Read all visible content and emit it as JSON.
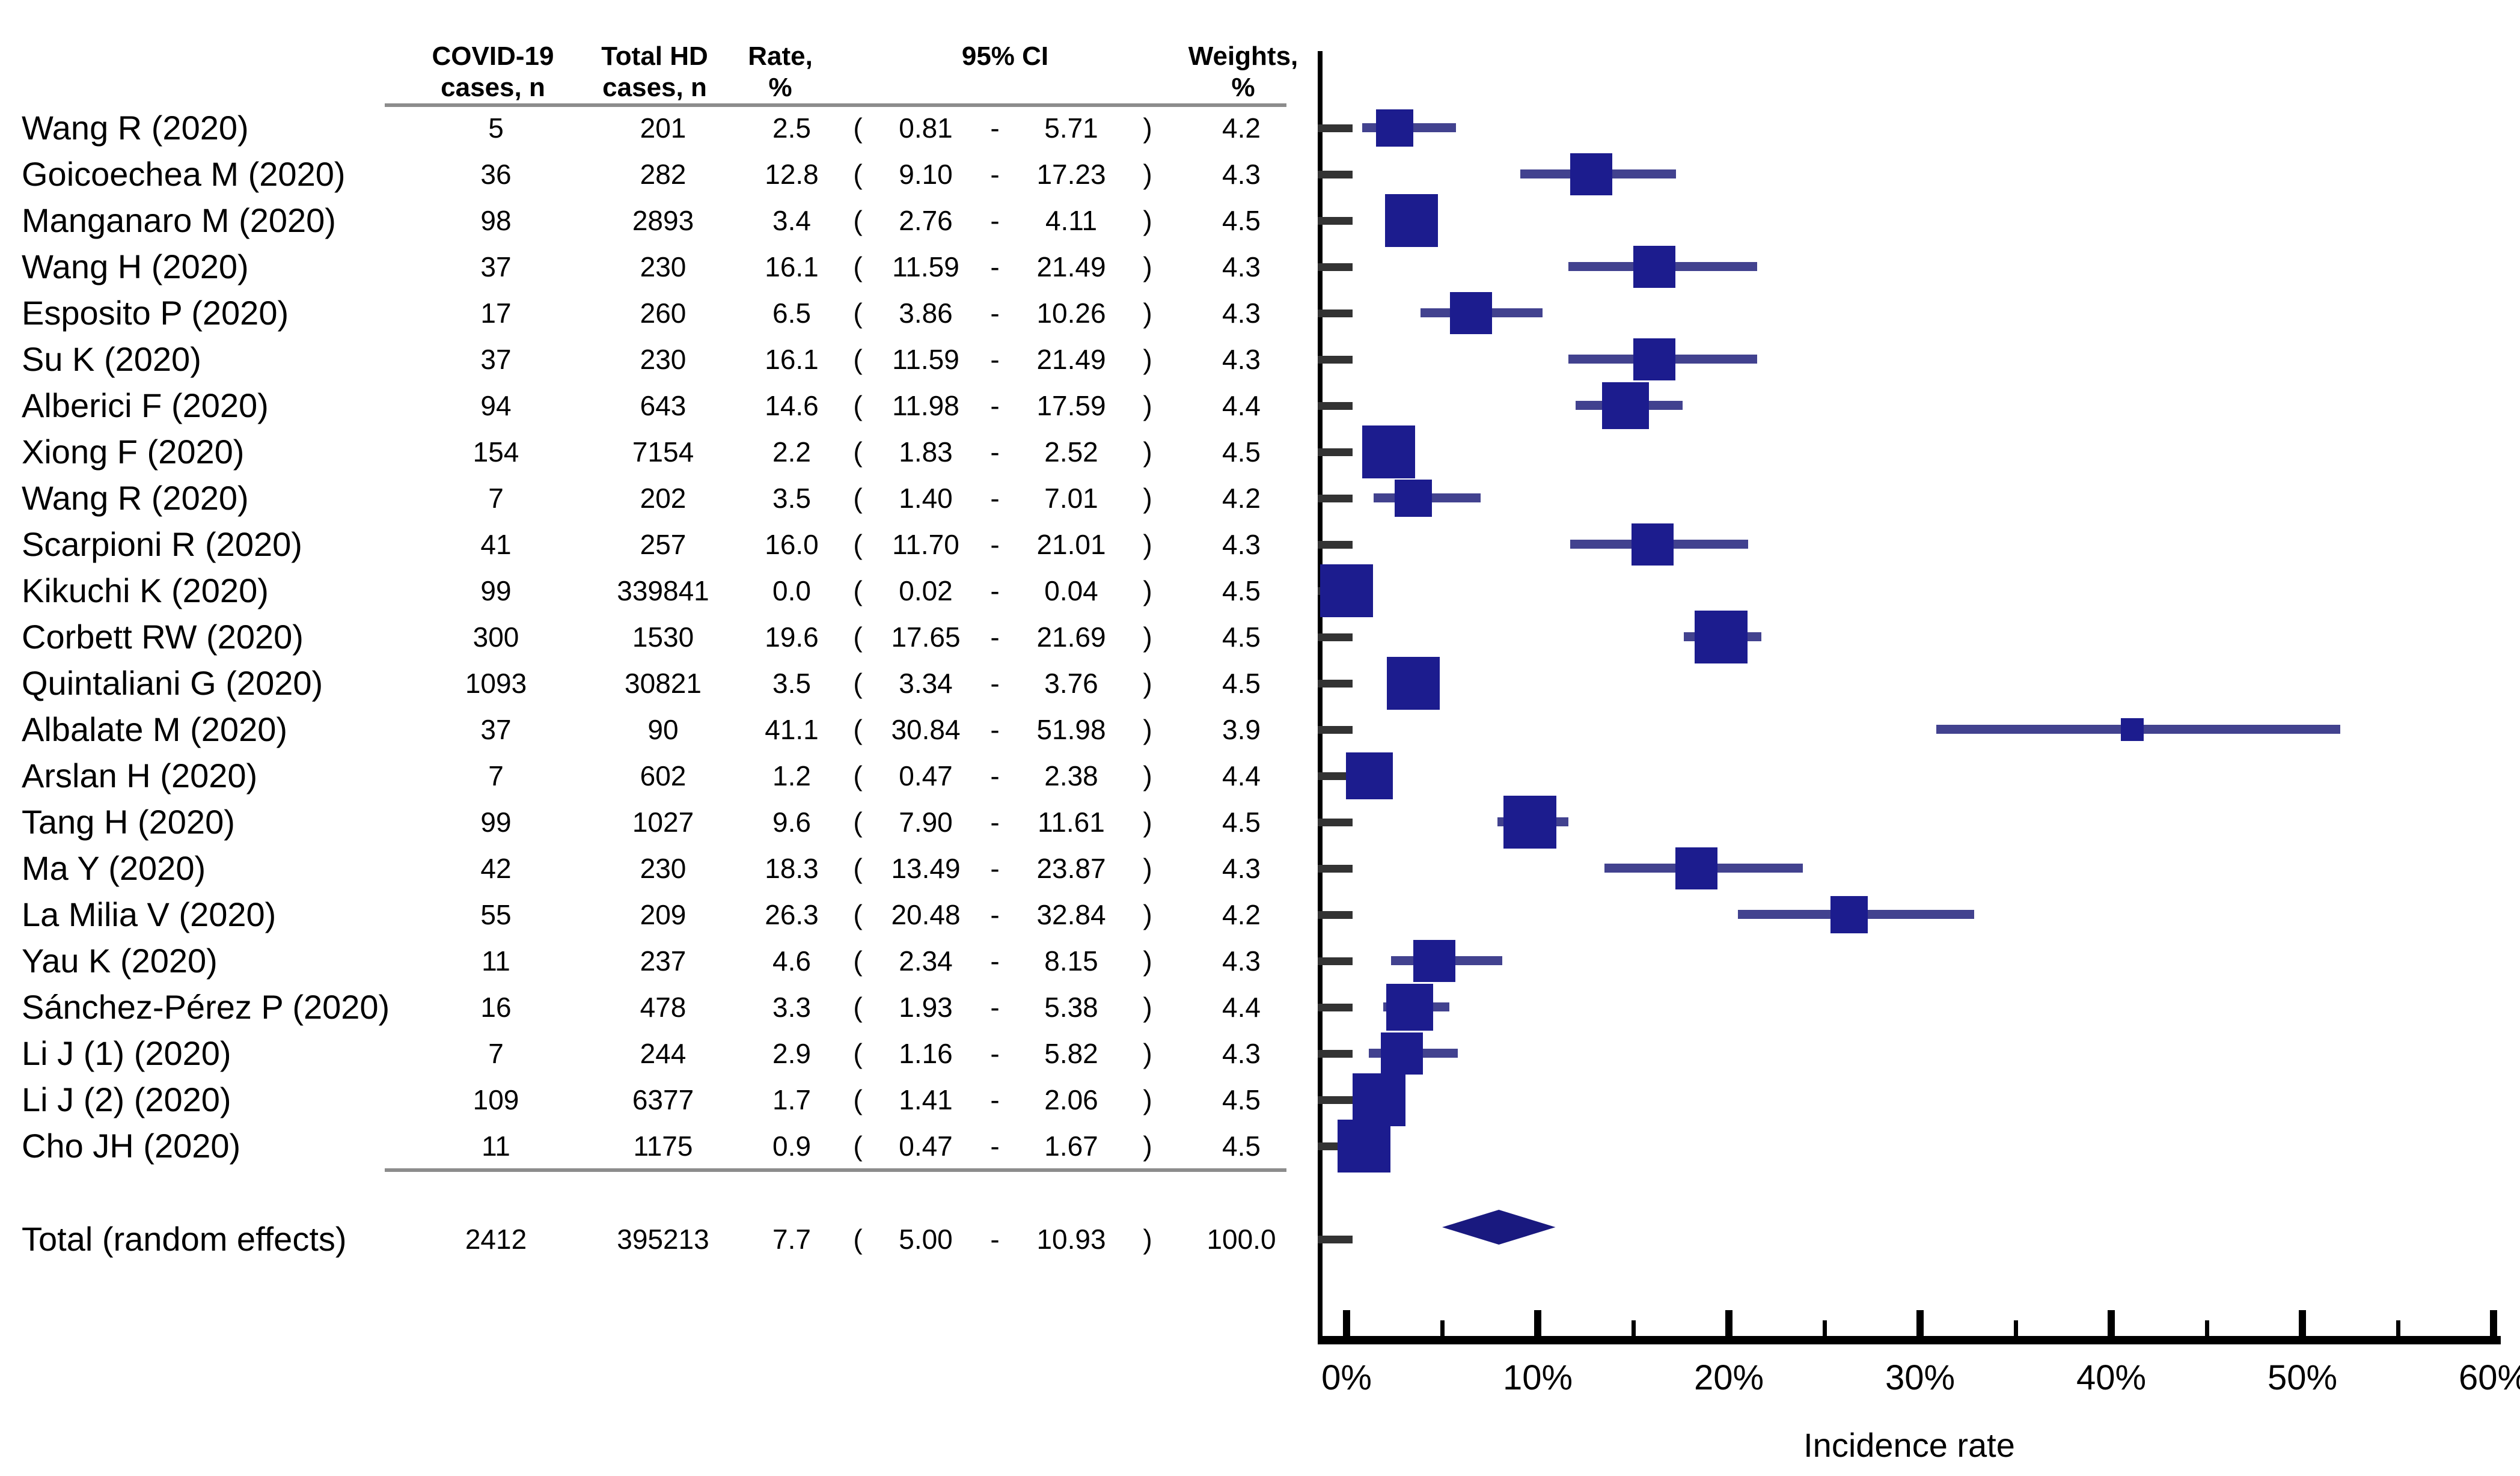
{
  "chart_data": {
    "type": "forest",
    "title": "",
    "xlabel": "Incidence rate",
    "xlim": [
      0,
      60
    ],
    "x_tick_labels": [
      "0%",
      "10%",
      "20%",
      "30%",
      "40%",
      "50%",
      "60%"
    ],
    "x_major_ticks": [
      0,
      10,
      20,
      30,
      40,
      50,
      60
    ],
    "x_minor_ticks": [
      5,
      15,
      25,
      35,
      45,
      55
    ],
    "grid": "off",
    "header": {
      "covid_cases": [
        "COVID-19",
        "cases, n"
      ],
      "total_hd_cases": [
        "Total HD",
        "cases, n"
      ],
      "rate": [
        "Rate,",
        "%"
      ],
      "ci": "95% CI",
      "weights": [
        "Weights,",
        "%"
      ]
    },
    "symbols": {
      "open_paren": "(",
      "close_paren": ")",
      "ci_separator": "-"
    },
    "studies": [
      {
        "label": "Wang R (2020)",
        "covid_cases": "5",
        "total_hd_cases": "201",
        "rate": "2.5",
        "ci_low": "0.81",
        "ci_high": "5.71",
        "weight": "4.2"
      },
      {
        "label": "Goicoechea M (2020)",
        "covid_cases": "36",
        "total_hd_cases": "282",
        "rate": "12.8",
        "ci_low": "9.10",
        "ci_high": "17.23",
        "weight": "4.3"
      },
      {
        "label": "Manganaro M (2020)",
        "covid_cases": "98",
        "total_hd_cases": "2893",
        "rate": "3.4",
        "ci_low": "2.76",
        "ci_high": "4.11",
        "weight": "4.5"
      },
      {
        "label": "Wang H (2020)",
        "covid_cases": "37",
        "total_hd_cases": "230",
        "rate": "16.1",
        "ci_low": "11.59",
        "ci_high": "21.49",
        "weight": "4.3"
      },
      {
        "label": "Esposito P (2020)",
        "covid_cases": "17",
        "total_hd_cases": "260",
        "rate": "6.5",
        "ci_low": "3.86",
        "ci_high": "10.26",
        "weight": "4.3"
      },
      {
        "label": "Su K (2020)",
        "covid_cases": "37",
        "total_hd_cases": "230",
        "rate": "16.1",
        "ci_low": "11.59",
        "ci_high": "21.49",
        "weight": "4.3"
      },
      {
        "label": "Alberici F (2020)",
        "covid_cases": "94",
        "total_hd_cases": "643",
        "rate": "14.6",
        "ci_low": "11.98",
        "ci_high": "17.59",
        "weight": "4.4"
      },
      {
        "label": "Xiong F (2020)",
        "covid_cases": "154",
        "total_hd_cases": "7154",
        "rate": "2.2",
        "ci_low": "1.83",
        "ci_high": "2.52",
        "weight": "4.5"
      },
      {
        "label": "Wang R (2020)",
        "covid_cases": "7",
        "total_hd_cases": "202",
        "rate": "3.5",
        "ci_low": "1.40",
        "ci_high": "7.01",
        "weight": "4.2"
      },
      {
        "label": "Scarpioni R (2020)",
        "covid_cases": "41",
        "total_hd_cases": "257",
        "rate": "16.0",
        "ci_low": "11.70",
        "ci_high": "21.01",
        "weight": "4.3"
      },
      {
        "label": "Kikuchi K (2020)",
        "covid_cases": "99",
        "total_hd_cases": "339841",
        "rate": "0.0",
        "ci_low": "0.02",
        "ci_high": "0.04",
        "weight": "4.5"
      },
      {
        "label": "Corbett RW (2020)",
        "covid_cases": "300",
        "total_hd_cases": "1530",
        "rate": "19.6",
        "ci_low": "17.65",
        "ci_high": "21.69",
        "weight": "4.5"
      },
      {
        "label": "Quintaliani G (2020)",
        "covid_cases": "1093",
        "total_hd_cases": "30821",
        "rate": "3.5",
        "ci_low": "3.34",
        "ci_high": "3.76",
        "weight": "4.5"
      },
      {
        "label": "Albalate M (2020)",
        "covid_cases": "37",
        "total_hd_cases": "90",
        "rate": "41.1",
        "ci_low": "30.84",
        "ci_high": "51.98",
        "weight": "3.9"
      },
      {
        "label": "Arslan H (2020)",
        "covid_cases": "7",
        "total_hd_cases": "602",
        "rate": "1.2",
        "ci_low": "0.47",
        "ci_high": "2.38",
        "weight": "4.4"
      },
      {
        "label": "Tang H (2020)",
        "covid_cases": "99",
        "total_hd_cases": "1027",
        "rate": "9.6",
        "ci_low": "7.90",
        "ci_high": "11.61",
        "weight": "4.5"
      },
      {
        "label": "Ma Y (2020)",
        "covid_cases": "42",
        "total_hd_cases": "230",
        "rate": "18.3",
        "ci_low": "13.49",
        "ci_high": "23.87",
        "weight": "4.3"
      },
      {
        "label": "La Milia V (2020)",
        "covid_cases": "55",
        "total_hd_cases": "209",
        "rate": "26.3",
        "ci_low": "20.48",
        "ci_high": "32.84",
        "weight": "4.2"
      },
      {
        "label": "Yau K (2020)",
        "covid_cases": "11",
        "total_hd_cases": "237",
        "rate": "4.6",
        "ci_low": "2.34",
        "ci_high": "8.15",
        "weight": "4.3"
      },
      {
        "label": "Sánchez-Pérez P (2020)",
        "covid_cases": "16",
        "total_hd_cases": "478",
        "rate": "3.3",
        "ci_low": "1.93",
        "ci_high": "5.38",
        "weight": "4.4"
      },
      {
        "label": "Li J (1) (2020)",
        "covid_cases": "7",
        "total_hd_cases": "244",
        "rate": "2.9",
        "ci_low": "1.16",
        "ci_high": "5.82",
        "weight": "4.3"
      },
      {
        "label": "Li J (2) (2020)",
        "covid_cases": "109",
        "total_hd_cases": "6377",
        "rate": "1.7",
        "ci_low": "1.41",
        "ci_high": "2.06",
        "weight": "4.5"
      },
      {
        "label": "Cho JH (2020)",
        "covid_cases": "11",
        "total_hd_cases": "1175",
        "rate": "0.9",
        "ci_low": "0.47",
        "ci_high": "1.67",
        "weight": "4.5"
      }
    ],
    "total": {
      "label": "Total (random effects)",
      "covid_cases": "2412",
      "total_hd_cases": "395213",
      "rate": "7.7",
      "ci_low": "5.00",
      "ci_high": "10.93",
      "weight": "100.0"
    },
    "colors": {
      "square": "#1c1c8e",
      "ci_line": "#42428f",
      "diamond": "#19197f",
      "axis": "#000000",
      "row_tick": "#333333",
      "rule": "#8c8c8c"
    }
  }
}
